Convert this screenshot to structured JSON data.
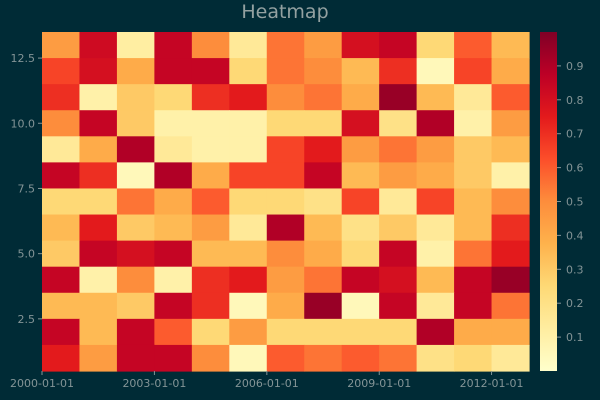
{
  "colors": {
    "background": "#002b36",
    "text": "#839496",
    "title": "#93a1a1",
    "colormap": "YlOrRd"
  },
  "chart_data": {
    "type": "heatmap",
    "title": "Heatmap",
    "xlabel": "",
    "ylabel": "",
    "x_ticks": [
      "2000-01-01",
      "2003-01-01",
      "2006-01-01",
      "2009-01-01",
      "2012-01-01"
    ],
    "y_ticks": [
      "2.5",
      "5.0",
      "7.5",
      "10.0",
      "12.5"
    ],
    "x_range": [
      "2000-01-01",
      "2012-12-31"
    ],
    "y_range": [
      0.5,
      13.5
    ],
    "x_categories": [
      "2000",
      "2001",
      "2002",
      "2003",
      "2004",
      "2005",
      "2006",
      "2007",
      "2008",
      "2009",
      "2010",
      "2011",
      "2012"
    ],
    "y_categories": [
      13,
      12,
      11,
      10,
      9,
      8,
      7,
      6,
      5,
      4,
      3,
      2,
      1
    ],
    "values": [
      [
        0.45,
        0.82,
        0.12,
        0.85,
        0.5,
        0.15,
        0.55,
        0.45,
        0.8,
        0.85,
        0.25,
        0.6,
        0.35
      ],
      [
        0.65,
        0.8,
        0.4,
        0.85,
        0.85,
        0.25,
        0.55,
        0.5,
        0.35,
        0.7,
        0.05,
        0.65,
        0.4
      ],
      [
        0.7,
        0.1,
        0.3,
        0.25,
        0.7,
        0.75,
        0.5,
        0.55,
        0.4,
        0.95,
        0.35,
        0.15,
        0.6
      ],
      [
        0.5,
        0.85,
        0.3,
        0.1,
        0.1,
        0.1,
        0.25,
        0.25,
        0.8,
        0.2,
        0.9,
        0.1,
        0.45
      ],
      [
        0.15,
        0.4,
        0.9,
        0.15,
        0.1,
        0.1,
        0.65,
        0.75,
        0.45,
        0.55,
        0.45,
        0.3,
        0.35
      ],
      [
        0.85,
        0.7,
        0.05,
        0.9,
        0.4,
        0.65,
        0.65,
        0.85,
        0.35,
        0.45,
        0.4,
        0.3,
        0.1
      ],
      [
        0.25,
        0.25,
        0.55,
        0.4,
        0.6,
        0.25,
        0.25,
        0.2,
        0.65,
        0.15,
        0.65,
        0.35,
        0.5
      ],
      [
        0.35,
        0.75,
        0.3,
        0.35,
        0.45,
        0.15,
        0.9,
        0.35,
        0.2,
        0.3,
        0.15,
        0.35,
        0.7
      ],
      [
        0.3,
        0.85,
        0.8,
        0.85,
        0.35,
        0.35,
        0.5,
        0.4,
        0.25,
        0.85,
        0.1,
        0.55,
        0.75
      ],
      [
        0.85,
        0.1,
        0.5,
        0.1,
        0.7,
        0.75,
        0.45,
        0.55,
        0.85,
        0.8,
        0.35,
        0.85,
        0.95
      ],
      [
        0.35,
        0.35,
        0.3,
        0.85,
        0.7,
        0.05,
        0.4,
        0.95,
        0.05,
        0.85,
        0.15,
        0.85,
        0.55
      ],
      [
        0.85,
        0.35,
        0.85,
        0.6,
        0.25,
        0.45,
        0.25,
        0.25,
        0.25,
        0.25,
        0.9,
        0.4,
        0.4
      ],
      [
        0.75,
        0.45,
        0.85,
        0.85,
        0.5,
        0.05,
        0.6,
        0.55,
        0.6,
        0.55,
        0.2,
        0.25,
        0.15
      ]
    ],
    "colorbar_ticks": [
      "0.1",
      "0.2",
      "0.3",
      "0.4",
      "0.5",
      "0.6",
      "0.7",
      "0.8",
      "0.9"
    ],
    "colorbar_range": [
      0.0,
      1.0
    ],
    "grid": false,
    "legend": "colorbar-right"
  }
}
